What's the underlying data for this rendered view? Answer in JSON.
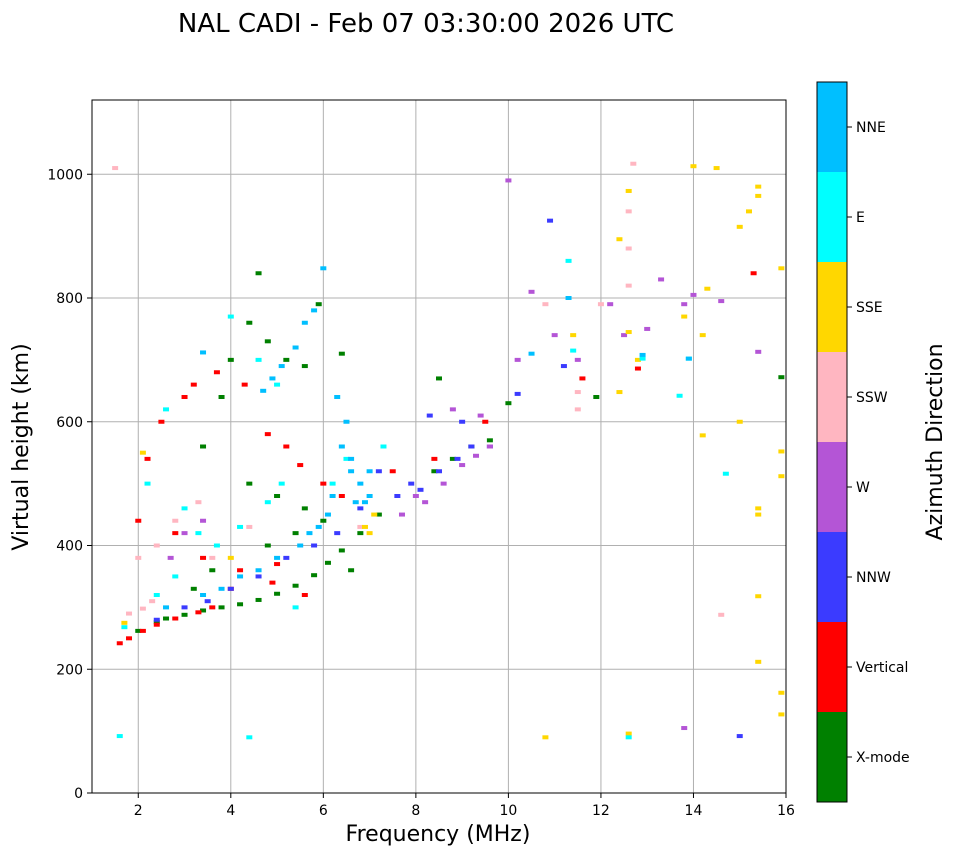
{
  "chart_data": {
    "type": "scatter",
    "title": "NAL CADI - Feb 07 03:30:00 2026 UTC",
    "xlabel": "Frequency (MHz)",
    "ylabel": "Virtual height (km)",
    "xlim": [
      1,
      16
    ],
    "ylim": [
      0,
      1120
    ],
    "xticks": [
      "2",
      "4",
      "6",
      "8",
      "10",
      "12",
      "14",
      "16"
    ],
    "xtick_values": [
      2,
      4,
      6,
      8,
      10,
      12,
      14,
      16
    ],
    "yticks": [
      "0",
      "200",
      "400",
      "600",
      "800",
      "1000"
    ],
    "ytick_values": [
      0,
      200,
      400,
      600,
      800,
      1000
    ],
    "grid": true,
    "colorbar": {
      "title": "Azimuth Direction",
      "categories": [
        {
          "name": "X-mode",
          "color": "#008000"
        },
        {
          "name": "Vertical",
          "color": "#ff0000"
        },
        {
          "name": "NNW",
          "color": "#3b3bff"
        },
        {
          "name": "W",
          "color": "#b455d6"
        },
        {
          "name": "SSW",
          "color": "#ffb6c1"
        },
        {
          "name": "SSE",
          "color": "#ffd700"
        },
        {
          "name": "E",
          "color": "#00ffff"
        },
        {
          "name": "NNE",
          "color": "#00bfff"
        }
      ]
    },
    "series": [
      {
        "name": "X-mode",
        "points": [
          [
            2.6,
            282
          ],
          [
            3.0,
            288
          ],
          [
            3.4,
            295
          ],
          [
            3.8,
            300
          ],
          [
            4.2,
            305
          ],
          [
            4.6,
            312
          ],
          [
            5.0,
            322
          ],
          [
            5.4,
            335
          ],
          [
            5.8,
            352
          ],
          [
            6.1,
            372
          ],
          [
            6.4,
            392
          ],
          [
            6.8,
            420
          ],
          [
            7.2,
            450
          ],
          [
            4.0,
            700
          ],
          [
            4.4,
            760
          ],
          [
            4.8,
            730
          ],
          [
            5.2,
            700
          ],
          [
            5.6,
            690
          ],
          [
            5.9,
            790
          ],
          [
            6.4,
            710
          ],
          [
            8.4,
            520
          ],
          [
            8.8,
            540
          ],
          [
            9.2,
            560
          ],
          [
            9.6,
            570
          ],
          [
            8.5,
            670
          ],
          [
            3.4,
            560
          ],
          [
            3.8,
            640
          ],
          [
            4.4,
            500
          ],
          [
            5.0,
            480
          ],
          [
            5.6,
            460
          ],
          [
            6.0,
            440
          ],
          [
            10.0,
            630
          ],
          [
            11.9,
            640
          ],
          [
            15.9,
            672
          ],
          [
            4.6,
            840
          ],
          [
            2.0,
            262
          ],
          [
            2.4,
            276
          ],
          [
            3.2,
            330
          ],
          [
            3.6,
            360
          ],
          [
            4.8,
            400
          ],
          [
            5.4,
            420
          ],
          [
            6.6,
            360
          ]
        ]
      },
      {
        "name": "Vertical",
        "points": [
          [
            1.6,
            242
          ],
          [
            1.8,
            250
          ],
          [
            2.1,
            262
          ],
          [
            2.4,
            272
          ],
          [
            2.8,
            282
          ],
          [
            3.3,
            292
          ],
          [
            2.2,
            540
          ],
          [
            2.5,
            600
          ],
          [
            3.0,
            640
          ],
          [
            3.2,
            660
          ],
          [
            3.7,
            680
          ],
          [
            4.3,
            660
          ],
          [
            4.8,
            580
          ],
          [
            5.2,
            560
          ],
          [
            5.5,
            530
          ],
          [
            6.0,
            500
          ],
          [
            2.8,
            420
          ],
          [
            3.4,
            380
          ],
          [
            4.2,
            360
          ],
          [
            4.9,
            340
          ],
          [
            5.6,
            320
          ],
          [
            7.5,
            520
          ],
          [
            8.4,
            540
          ],
          [
            9.5,
            600
          ],
          [
            11.6,
            670
          ],
          [
            12.8,
            686
          ],
          [
            15.3,
            840
          ],
          [
            6.4,
            480
          ],
          [
            5.0,
            370
          ],
          [
            4.0,
            330
          ],
          [
            2.0,
            440
          ],
          [
            3.6,
            300
          ]
        ]
      },
      {
        "name": "NNW",
        "points": [
          [
            7.6,
            480
          ],
          [
            7.9,
            500
          ],
          [
            8.1,
            490
          ],
          [
            8.5,
            520
          ],
          [
            8.9,
            540
          ],
          [
            9.2,
            560
          ],
          [
            9.6,
            560
          ],
          [
            10.9,
            925
          ],
          [
            15.0,
            92
          ],
          [
            7.2,
            520
          ],
          [
            6.8,
            460
          ],
          [
            6.3,
            420
          ],
          [
            5.8,
            400
          ],
          [
            5.2,
            380
          ],
          [
            4.6,
            350
          ],
          [
            4.0,
            330
          ],
          [
            3.5,
            310
          ],
          [
            3.0,
            300
          ],
          [
            2.4,
            280
          ],
          [
            10.2,
            645
          ],
          [
            11.2,
            690
          ],
          [
            8.3,
            610
          ],
          [
            9.0,
            600
          ]
        ]
      },
      {
        "name": "W",
        "points": [
          [
            7.7,
            450
          ],
          [
            8.0,
            480
          ],
          [
            8.2,
            470
          ],
          [
            8.6,
            500
          ],
          [
            9.0,
            530
          ],
          [
            9.3,
            545
          ],
          [
            9.6,
            560
          ],
          [
            10.0,
            990
          ],
          [
            10.2,
            700
          ],
          [
            10.5,
            810
          ],
          [
            11.0,
            740
          ],
          [
            11.5,
            700
          ],
          [
            12.2,
            790
          ],
          [
            12.5,
            740
          ],
          [
            13.0,
            750
          ],
          [
            13.3,
            830
          ],
          [
            13.8,
            790
          ],
          [
            14.0,
            805
          ],
          [
            14.6,
            795
          ],
          [
            15.4,
            713
          ],
          [
            13.8,
            105
          ],
          [
            3.4,
            440
          ],
          [
            3.0,
            420
          ],
          [
            2.7,
            380
          ],
          [
            8.8,
            620
          ],
          [
            9.4,
            610
          ]
        ]
      },
      {
        "name": "SSW",
        "points": [
          [
            1.8,
            290
          ],
          [
            2.1,
            298
          ],
          [
            2.3,
            310
          ],
          [
            2.0,
            380
          ],
          [
            2.4,
            400
          ],
          [
            2.8,
            440
          ],
          [
            3.3,
            470
          ],
          [
            11.5,
            620
          ],
          [
            12.0,
            790
          ],
          [
            12.6,
            820
          ],
          [
            12.6,
            940
          ],
          [
            12.6,
            880
          ],
          [
            12.7,
            1017
          ],
          [
            10.8,
            790
          ],
          [
            11.5,
            648
          ],
          [
            14.6,
            288
          ],
          [
            1.5,
            1010
          ],
          [
            3.6,
            380
          ],
          [
            4.4,
            430
          ],
          [
            6.8,
            430
          ]
        ]
      },
      {
        "name": "SSE",
        "points": [
          [
            6.9,
            430
          ],
          [
            7.1,
            450
          ],
          [
            7.0,
            420
          ],
          [
            2.1,
            550
          ],
          [
            12.6,
            973
          ],
          [
            12.4,
            895
          ],
          [
            12.6,
            745
          ],
          [
            12.4,
            648
          ],
          [
            12.8,
            700
          ],
          [
            13.8,
            770
          ],
          [
            14.0,
            1013
          ],
          [
            14.3,
            815
          ],
          [
            14.2,
            740
          ],
          [
            14.5,
            1010
          ],
          [
            15.0,
            915
          ],
          [
            15.2,
            940
          ],
          [
            15.4,
            965
          ],
          [
            15.4,
            980
          ],
          [
            15.9,
            848
          ],
          [
            15.0,
            600
          ],
          [
            15.9,
            552
          ],
          [
            15.9,
            512
          ],
          [
            15.4,
            460
          ],
          [
            15.4,
            450
          ],
          [
            15.4,
            318
          ],
          [
            15.4,
            212
          ],
          [
            15.9,
            162
          ],
          [
            15.9,
            127
          ],
          [
            12.6,
            96
          ],
          [
            10.8,
            90
          ],
          [
            14.2,
            578
          ],
          [
            1.7,
            275
          ],
          [
            4.0,
            380
          ],
          [
            11.4,
            740
          ]
        ]
      },
      {
        "name": "E",
        "points": [
          [
            1.6,
            92
          ],
          [
            2.2,
            500
          ],
          [
            2.6,
            620
          ],
          [
            3.0,
            460
          ],
          [
            3.3,
            420
          ],
          [
            3.7,
            400
          ],
          [
            4.2,
            430
          ],
          [
            4.8,
            470
          ],
          [
            5.1,
            500
          ],
          [
            5.4,
            300
          ],
          [
            4.4,
            90
          ],
          [
            11.3,
            860
          ],
          [
            11.4,
            715
          ],
          [
            12.6,
            90
          ],
          [
            12.9,
            702
          ],
          [
            13.9,
            702
          ],
          [
            14.7,
            516
          ],
          [
            13.7,
            642
          ],
          [
            4.0,
            770
          ],
          [
            4.6,
            700
          ],
          [
            5.0,
            660
          ],
          [
            2.8,
            350
          ],
          [
            2.4,
            320
          ],
          [
            1.7,
            268
          ],
          [
            6.2,
            500
          ],
          [
            6.5,
            540
          ],
          [
            7.3,
            560
          ]
        ]
      },
      {
        "name": "NNE",
        "points": [
          [
            6.0,
            848
          ],
          [
            5.8,
            780
          ],
          [
            5.6,
            760
          ],
          [
            5.4,
            720
          ],
          [
            5.1,
            690
          ],
          [
            4.9,
            670
          ],
          [
            4.7,
            650
          ],
          [
            6.3,
            640
          ],
          [
            6.5,
            600
          ],
          [
            6.4,
            560
          ],
          [
            6.6,
            520
          ],
          [
            6.8,
            500
          ],
          [
            7.0,
            480
          ],
          [
            6.7,
            470
          ],
          [
            6.9,
            470
          ],
          [
            6.2,
            480
          ],
          [
            6.1,
            450
          ],
          [
            5.9,
            430
          ],
          [
            5.7,
            420
          ],
          [
            5.5,
            400
          ],
          [
            5.0,
            380
          ],
          [
            4.6,
            360
          ],
          [
            4.2,
            350
          ],
          [
            3.8,
            330
          ],
          [
            3.4,
            320
          ],
          [
            2.6,
            300
          ],
          [
            11.3,
            800
          ],
          [
            10.5,
            710
          ],
          [
            12.9,
            708
          ],
          [
            13.9,
            702
          ],
          [
            3.4,
            712
          ],
          [
            6.6,
            540
          ],
          [
            7.0,
            520
          ]
        ]
      }
    ]
  }
}
